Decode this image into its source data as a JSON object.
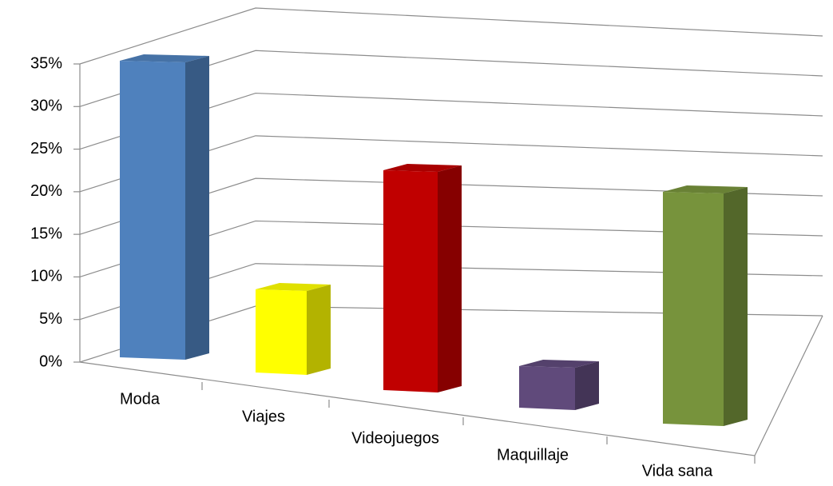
{
  "chart_data": {
    "type": "bar3d",
    "categories": [
      "Moda",
      "Viajes",
      "Videojuegos",
      "Maquillaje",
      "Vida sana"
    ],
    "values": [
      35,
      10,
      25,
      5,
      25
    ],
    "colors": [
      "#4f81bd",
      "#ffff00",
      "#c00000",
      "#604a7b",
      "#77933c"
    ],
    "ylim": [
      0,
      35
    ],
    "yticks": [
      {
        "value": 0,
        "label": "0%"
      },
      {
        "value": 5,
        "label": "5%"
      },
      {
        "value": 10,
        "label": "10%"
      },
      {
        "value": 15,
        "label": "15%"
      },
      {
        "value": 20,
        "label": "20%"
      },
      {
        "value": 25,
        "label": "25%"
      },
      {
        "value": 30,
        "label": "30%"
      },
      {
        "value": 35,
        "label": "35%"
      }
    ],
    "grid": true
  }
}
